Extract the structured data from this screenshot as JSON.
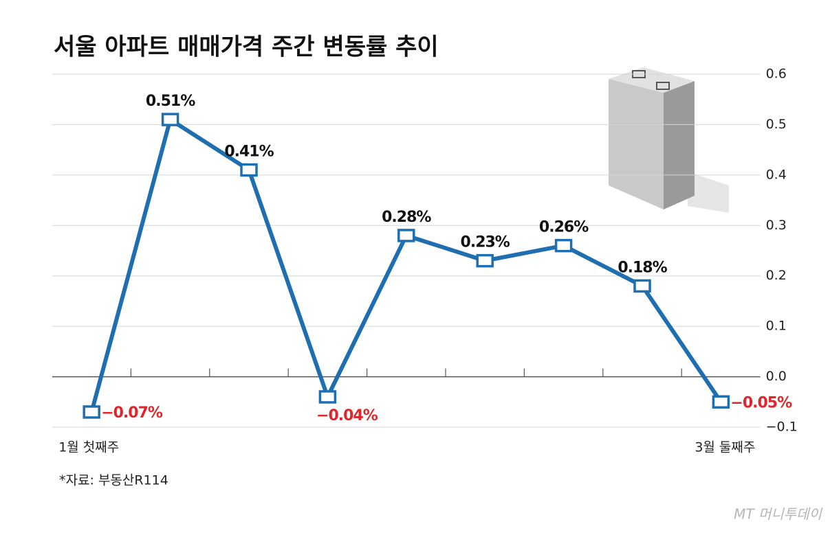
{
  "chart_data": {
    "type": "line",
    "title": "서울 아파트 매매가격 주간 변동률 추이",
    "categories": [
      "1월 첫째주",
      null,
      null,
      null,
      null,
      null,
      null,
      null,
      "3월 둘째주"
    ],
    "values": [
      -0.07,
      0.51,
      0.41,
      -0.04,
      0.28,
      0.23,
      0.26,
      0.18,
      -0.05
    ],
    "value_labels": [
      "−0.07%",
      "0.51%",
      "0.41%",
      "−0.04%",
      "0.28%",
      "0.23%",
      "0.26%",
      "0.18%",
      "−0.05%"
    ],
    "color": "#1f6fb0",
    "negative_label_color": "#e0262b",
    "ylim": [
      -0.1,
      0.6
    ],
    "yticks": [
      0.6,
      0.5,
      0.4,
      0.3,
      0.2,
      0.1,
      {
        "value": 0,
        "label": "0.0"
      },
      {
        "value": -0.1,
        "label": "−0.1"
      }
    ],
    "grid": true,
    "source": "*자료: 부동산R114",
    "watermark": "MT 머니투데이"
  }
}
